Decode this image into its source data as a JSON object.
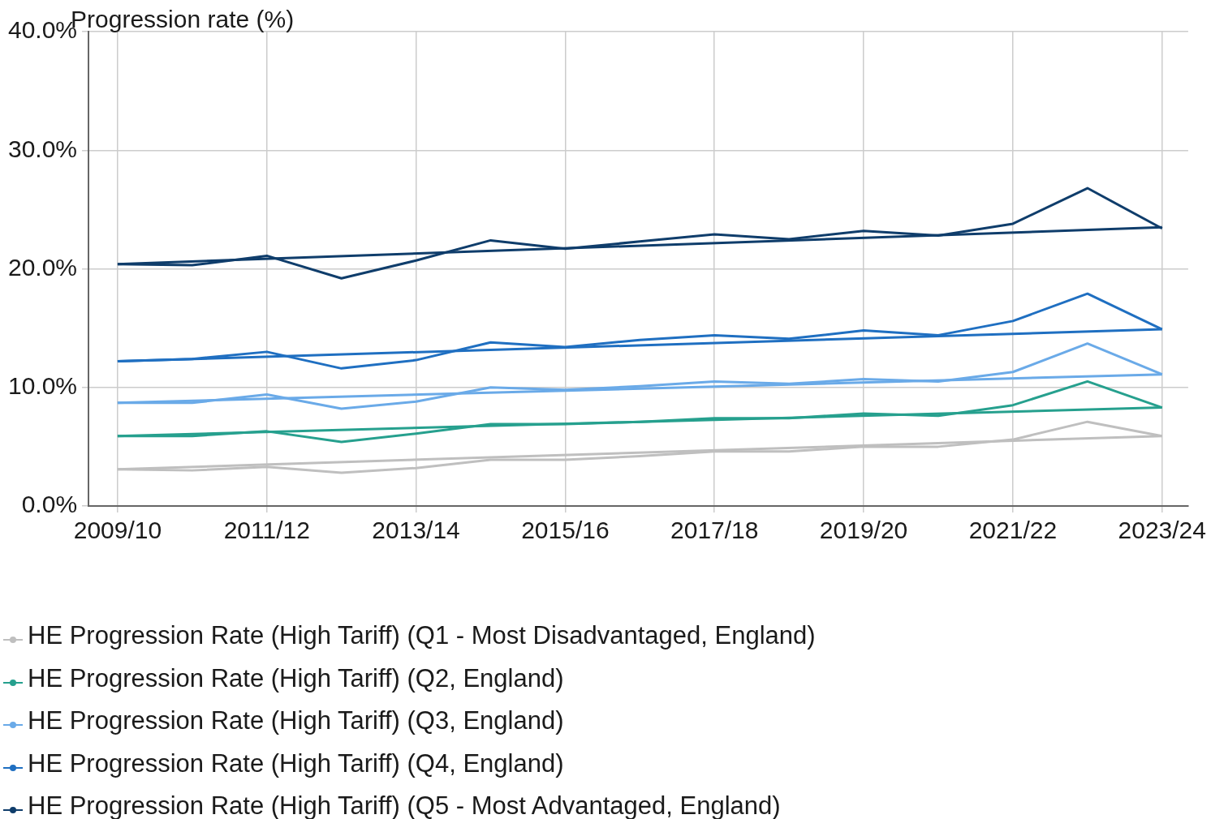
{
  "chart_data": {
    "type": "line",
    "ylabel": "Progression rate (%)",
    "categories": [
      "2009/10",
      null,
      "2011/12",
      null,
      "2013/14",
      null,
      "2015/16",
      null,
      "2017/18",
      null,
      "2019/20",
      null,
      "2021/22",
      null,
      "2023/24"
    ],
    "ylim": [
      0,
      40
    ],
    "yticks": [
      {
        "value": 0,
        "label": "0.0%"
      },
      {
        "value": 10,
        "label": "10.0%"
      },
      {
        "value": 20,
        "label": "20.0%"
      },
      {
        "value": 30,
        "label": "30.0%"
      },
      {
        "value": 40,
        "label": "40.0%"
      }
    ],
    "grid": true,
    "legend": "bottom",
    "series": [
      {
        "name": "HE Progression Rate (High Tariff) (Q1 - Most Disadvantaged, England)",
        "color": "#bfbfbf",
        "values": [
          3.1,
          3.0,
          3.3,
          2.8,
          3.2,
          3.9,
          3.9,
          4.2,
          4.6,
          4.6,
          5.0,
          5.0,
          5.6,
          7.1,
          5.9
        ]
      },
      {
        "name": "HE Progression Rate (High Tariff) (Q2, England)",
        "color": "#26a08e",
        "values": [
          5.9,
          5.9,
          6.3,
          5.4,
          6.1,
          6.9,
          6.9,
          7.1,
          7.4,
          7.4,
          7.8,
          7.6,
          8.5,
          10.5,
          8.3
        ]
      },
      {
        "name": "HE Progression Rate (High Tariff) (Q3, England)",
        "color": "#6aaae8",
        "values": [
          8.7,
          8.7,
          9.4,
          8.2,
          8.8,
          10.0,
          9.8,
          10.1,
          10.5,
          10.3,
          10.7,
          10.5,
          11.3,
          13.7,
          11.1
        ]
      },
      {
        "name": "HE Progression Rate (High Tariff) (Q4, England)",
        "color": "#1f6fc1",
        "values": [
          12.2,
          12.4,
          13.0,
          11.6,
          12.3,
          13.8,
          13.4,
          14.0,
          14.4,
          14.1,
          14.8,
          14.4,
          15.6,
          17.9,
          14.9
        ]
      },
      {
        "name": "HE Progression Rate (High Tariff) (Q5 - Most Advantaged, England)",
        "color": "#0f3d6b",
        "values": [
          20.4,
          20.3,
          21.1,
          19.2,
          20.7,
          22.4,
          21.7,
          22.3,
          22.9,
          22.5,
          23.2,
          22.8,
          23.8,
          26.8,
          23.4
        ]
      },
      {
        "type": "line",
        "color": "#bfbfbf",
        "values": [
          3.1,
          null,
          null,
          null,
          null,
          null,
          null,
          null,
          null,
          null,
          null,
          null,
          null,
          null,
          5.9
        ]
      },
      {
        "type": "line",
        "color": "#26a08e",
        "values": [
          5.9,
          null,
          null,
          null,
          null,
          null,
          null,
          null,
          null,
          null,
          null,
          null,
          null,
          null,
          8.3
        ]
      },
      {
        "type": "line",
        "color": "#6aaae8",
        "values": [
          8.7,
          null,
          null,
          null,
          null,
          null,
          null,
          null,
          null,
          null,
          null,
          null,
          null,
          null,
          11.1
        ]
      },
      {
        "type": "line",
        "color": "#1f6fc1",
        "values": [
          12.2,
          null,
          null,
          null,
          null,
          null,
          null,
          null,
          null,
          null,
          null,
          null,
          null,
          null,
          14.9
        ]
      },
      {
        "type": "line",
        "color": "#0f3d6b",
        "values": [
          20.4,
          null,
          null,
          null,
          null,
          null,
          null,
          null,
          null,
          null,
          null,
          null,
          null,
          null,
          23.5
        ]
      }
    ]
  }
}
